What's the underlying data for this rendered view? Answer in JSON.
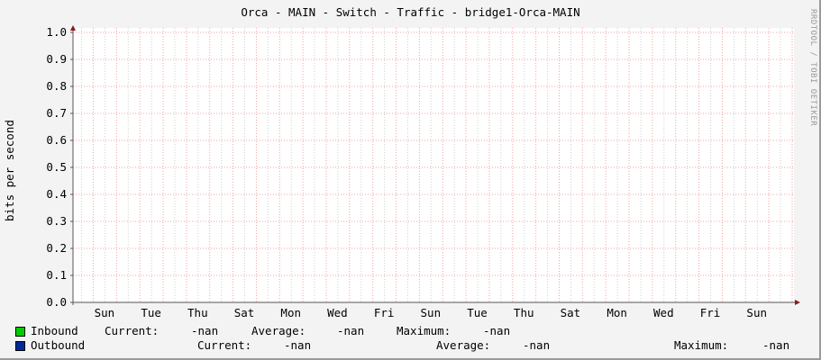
{
  "chart_data": {
    "type": "line",
    "title": "Orca - MAIN - Switch - Traffic - bridge1-Orca-MAIN",
    "ylabel": "bits per second",
    "xlabel": "",
    "ylim": [
      0,
      1.0
    ],
    "yticks": [
      "0.0",
      "0.1",
      "0.2",
      "0.3",
      "0.4",
      "0.5",
      "0.6",
      "0.7",
      "0.8",
      "0.9",
      "1.0"
    ],
    "xticks": [
      "Sun",
      "Tue",
      "Thu",
      "Sat",
      "Mon",
      "Wed",
      "Fri",
      "Sun",
      "Tue",
      "Thu",
      "Sat",
      "Mon",
      "Wed",
      "Fri",
      "Sun"
    ],
    "grid": true,
    "series": [
      {
        "name": "Inbound",
        "color": "#00cc00",
        "values": [],
        "current": "-nan",
        "average": "-nan",
        "maximum": "-nan"
      },
      {
        "name": "Outbound",
        "color": "#002a97",
        "values": [],
        "current": "-nan",
        "average": "-nan",
        "maximum": "-nan"
      }
    ],
    "legend": {
      "current_label": "Current:",
      "average_label": "Average:",
      "maximum_label": "Maximum:"
    },
    "watermark": "RRDTOOL / TOBI OETIKER"
  }
}
